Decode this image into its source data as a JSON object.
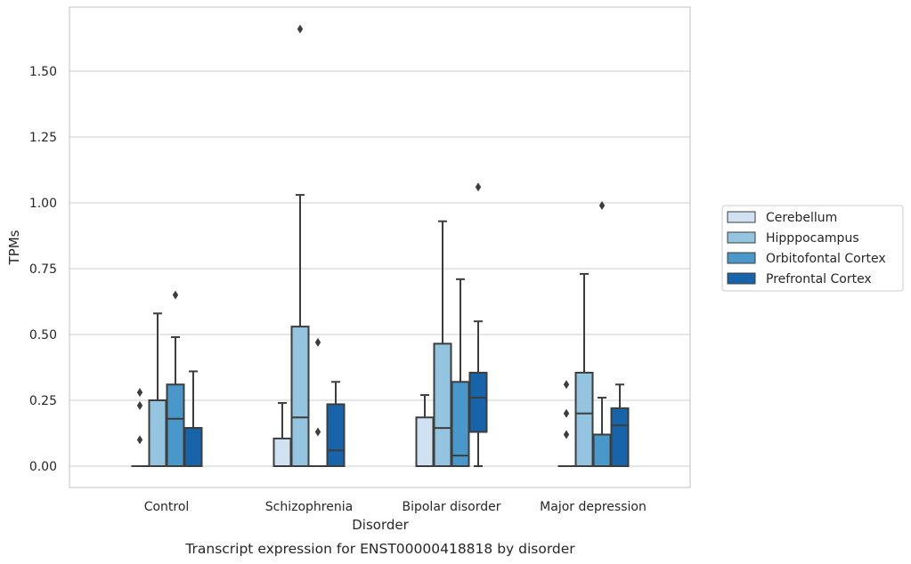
{
  "colors": {
    "grid": "#cccccc",
    "frame": "#cccccc",
    "edge": "#3d3d3d",
    "Cerebellum": "#d0e1f2",
    "Hipppocampus": "#94c4df",
    "Orbitofontal Cortex": "#4a98c9",
    "Prefrontal Cortex": "#1764ab"
  },
  "caption": "Transcript expression for ENST00000418818 by disorder",
  "chart_data": {
    "type": "box",
    "title": "",
    "xlabel": "Disorder",
    "ylabel": "TPMs",
    "ylim": [
      -0.08,
      1.75
    ],
    "yticks": [
      0.0,
      0.25,
      0.5,
      0.75,
      1.0,
      1.25,
      1.5
    ],
    "ytick_labels": [
      "0.00",
      "0.25",
      "0.50",
      "0.75",
      "1.00",
      "1.25",
      "1.50"
    ],
    "grid": "horizontal",
    "legend_position": "right",
    "categories": [
      "Control",
      "Schizophrenia",
      "Bipolar disorder",
      "Major depression"
    ],
    "series": [
      {
        "name": "Cerebellum",
        "boxes": [
          {
            "whisker_low": 0.0,
            "q1": 0.0,
            "median": 0.0,
            "q3": 0.0,
            "whisker_high": 0.0,
            "outliers": [
              0.28,
              0.23,
              0.1
            ]
          },
          {
            "whisker_low": 0.0,
            "q1": 0.0,
            "median": 0.0,
            "q3": 0.105,
            "whisker_high": 0.24,
            "outliers": []
          },
          {
            "whisker_low": 0.0,
            "q1": 0.0,
            "median": 0.0,
            "q3": 0.185,
            "whisker_high": 0.27,
            "outliers": []
          },
          {
            "whisker_low": 0.0,
            "q1": 0.0,
            "median": 0.0,
            "q3": 0.0,
            "whisker_high": 0.0,
            "outliers": [
              0.31,
              0.2,
              0.12
            ]
          }
        ]
      },
      {
        "name": "Hipppocampus",
        "boxes": [
          {
            "whisker_low": 0.0,
            "q1": 0.0,
            "median": 0.0,
            "q3": 0.25,
            "whisker_high": 0.58,
            "outliers": []
          },
          {
            "whisker_low": 0.0,
            "q1": 0.0,
            "median": 0.185,
            "q3": 0.53,
            "whisker_high": 1.03,
            "outliers": [
              1.66
            ]
          },
          {
            "whisker_low": 0.0,
            "q1": 0.0,
            "median": 0.145,
            "q3": 0.465,
            "whisker_high": 0.93,
            "outliers": []
          },
          {
            "whisker_low": 0.0,
            "q1": 0.0,
            "median": 0.2,
            "q3": 0.355,
            "whisker_high": 0.73,
            "outliers": []
          }
        ]
      },
      {
        "name": "Orbitofontal Cortex",
        "boxes": [
          {
            "whisker_low": 0.0,
            "q1": 0.0,
            "median": 0.18,
            "q3": 0.31,
            "whisker_high": 0.49,
            "outliers": [
              0.65
            ]
          },
          {
            "whisker_low": 0.0,
            "q1": 0.0,
            "median": 0.0,
            "q3": 0.0,
            "whisker_high": 0.0,
            "outliers": [
              0.47,
              0.13
            ]
          },
          {
            "whisker_low": 0.0,
            "q1": 0.0,
            "median": 0.04,
            "q3": 0.32,
            "whisker_high": 0.71,
            "outliers": []
          },
          {
            "whisker_low": 0.0,
            "q1": 0.0,
            "median": 0.12,
            "q3": 0.12,
            "whisker_high": 0.26,
            "outliers": [
              0.99
            ]
          }
        ]
      },
      {
        "name": "Prefrontal Cortex",
        "boxes": [
          {
            "whisker_low": 0.0,
            "q1": 0.0,
            "median": 0.145,
            "q3": 0.145,
            "whisker_high": 0.36,
            "outliers": []
          },
          {
            "whisker_low": 0.0,
            "q1": 0.0,
            "median": 0.06,
            "q3": 0.235,
            "whisker_high": 0.32,
            "outliers": []
          },
          {
            "whisker_low": 0.0,
            "q1": 0.13,
            "median": 0.26,
            "q3": 0.355,
            "whisker_high": 0.55,
            "outliers": [
              1.06
            ]
          },
          {
            "whisker_low": 0.0,
            "q1": 0.0,
            "median": 0.155,
            "q3": 0.22,
            "whisker_high": 0.31,
            "outliers": []
          }
        ]
      }
    ]
  }
}
